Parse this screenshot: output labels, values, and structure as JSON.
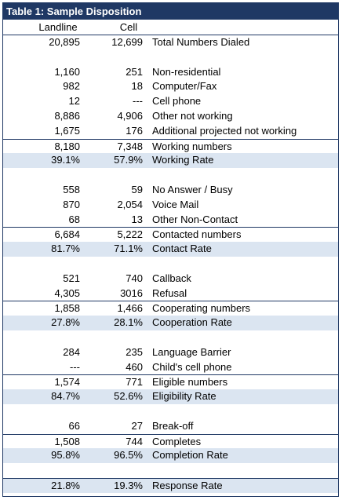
{
  "title": "Table 1: Sample Disposition",
  "columns": {
    "landline": "Landline",
    "cell": "Cell",
    "label": ""
  },
  "rows": [
    {
      "landline": "20,895",
      "cell": "12,699",
      "label": "Total Numbers Dialed"
    },
    {
      "landline": "",
      "cell": "",
      "label": ""
    },
    {
      "landline": "1,160",
      "cell": "251",
      "label": "Non-residential"
    },
    {
      "landline": "982",
      "cell": "18",
      "label": "Computer/Fax"
    },
    {
      "landline": "12",
      "cell": "---",
      "label": "Cell phone"
    },
    {
      "landline": "8,886",
      "cell": "4,906",
      "label": "Other not working"
    },
    {
      "landline": "1,675",
      "cell": "176",
      "label": "Additional projected not working"
    },
    {
      "landline": "8,180",
      "cell": "7,348",
      "label": "Working numbers"
    },
    {
      "landline": "39.1%",
      "cell": "57.9%",
      "label": "Working Rate"
    },
    {
      "landline": "",
      "cell": "",
      "label": ""
    },
    {
      "landline": "558",
      "cell": "59",
      "label": "No Answer / Busy"
    },
    {
      "landline": "870",
      "cell": "2,054",
      "label": "Voice Mail"
    },
    {
      "landline": "68",
      "cell": "13",
      "label": "Other Non-Contact"
    },
    {
      "landline": "6,684",
      "cell": "5,222",
      "label": "Contacted numbers"
    },
    {
      "landline": "81.7%",
      "cell": "71.1%",
      "label": "Contact Rate"
    },
    {
      "landline": "",
      "cell": "",
      "label": ""
    },
    {
      "landline": "521",
      "cell": "740",
      "label": "Callback"
    },
    {
      "landline": "4,305",
      "cell": "3016",
      "label": "Refusal"
    },
    {
      "landline": "1,858",
      "cell": "1,466",
      "label": "Cooperating numbers"
    },
    {
      "landline": "27.8%",
      "cell": "28.1%",
      "label": "Cooperation Rate"
    },
    {
      "landline": "",
      "cell": "",
      "label": ""
    },
    {
      "landline": "284",
      "cell": "235",
      "label": "Language Barrier"
    },
    {
      "landline": "---",
      "cell": "460",
      "label": "Child's cell phone"
    },
    {
      "landline": "1,574",
      "cell": "771",
      "label": "Eligible numbers"
    },
    {
      "landline": "84.7%",
      "cell": "52.6%",
      "label": "Eligibility Rate"
    },
    {
      "landline": "",
      "cell": "",
      "label": ""
    },
    {
      "landline": "66",
      "cell": "27",
      "label": "Break-off"
    },
    {
      "landline": "1,508",
      "cell": "744",
      "label": "Completes"
    },
    {
      "landline": "95.8%",
      "cell": "96.5%",
      "label": "Completion Rate"
    },
    {
      "landline": "",
      "cell": "",
      "label": ""
    },
    {
      "landline": "21.8%",
      "cell": "19.3%",
      "label": "Response Rate"
    }
  ],
  "colors": {
    "header": "#1f3864",
    "shade": "#dbe5f1",
    "rule": "#1f3864"
  }
}
